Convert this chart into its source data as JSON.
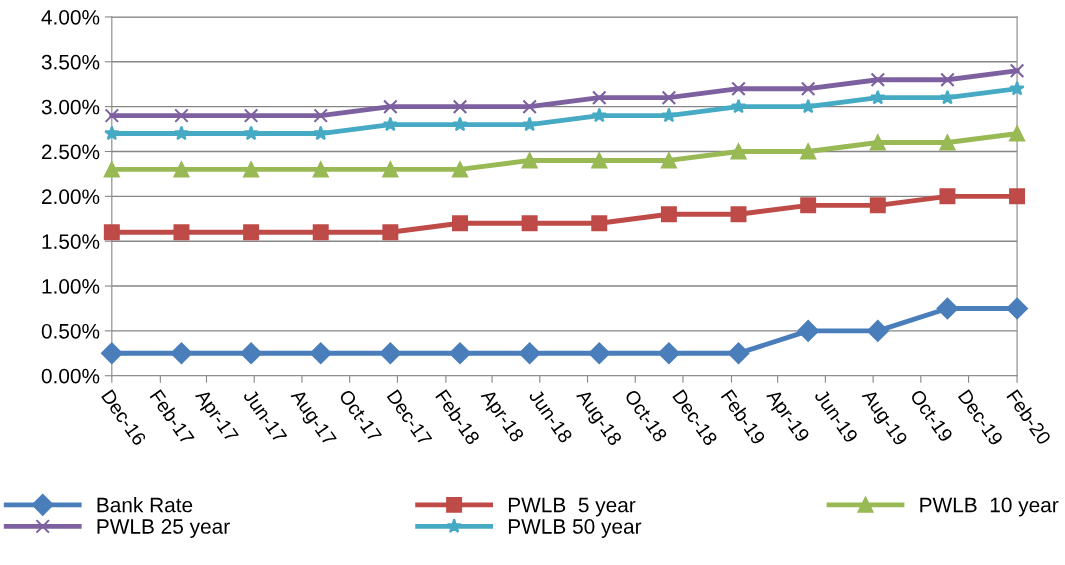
{
  "chart_data": {
    "type": "line",
    "x": [
      "2016-12-01",
      "2017-02-28",
      "2017-05-28",
      "2017-08-25",
      "2017-11-22",
      "2018-02-19",
      "2018-05-19",
      "2018-08-16",
      "2018-11-13",
      "2019-02-10",
      "2019-05-10",
      "2019-08-07",
      "2019-11-04",
      "2020-02-01"
    ],
    "series": [
      {
        "name": "Bank Rate",
        "color": "#4a7ebb",
        "marker": "diamond",
        "values": [
          0.25,
          0.25,
          0.25,
          0.25,
          0.25,
          0.25,
          0.25,
          0.25,
          0.25,
          0.25,
          0.5,
          0.5,
          0.75,
          0.75
        ]
      },
      {
        "name": "PWLB  5 year",
        "color": "#be4b48",
        "marker": "square",
        "values": [
          1.6,
          1.6,
          1.6,
          1.6,
          1.6,
          1.7,
          1.7,
          1.7,
          1.8,
          1.8,
          1.9,
          1.9,
          2.0,
          2.0
        ]
      },
      {
        "name": "PWLB  10 year",
        "color": "#98b954",
        "marker": "triangle",
        "values": [
          2.3,
          2.3,
          2.3,
          2.3,
          2.3,
          2.3,
          2.4,
          2.4,
          2.4,
          2.5,
          2.5,
          2.6,
          2.6,
          2.7
        ]
      },
      {
        "name": "PWLB 25 year",
        "color": "#7d60a0",
        "marker": "cross",
        "values": [
          2.9,
          2.9,
          2.9,
          2.9,
          3.0,
          3.0,
          3.0,
          3.1,
          3.1,
          3.2,
          3.2,
          3.3,
          3.3,
          3.4
        ]
      },
      {
        "name": "PWLB 50 year",
        "color": "#46aac5",
        "marker": "star",
        "values": [
          2.7,
          2.7,
          2.7,
          2.7,
          2.8,
          2.8,
          2.8,
          2.9,
          2.9,
          3.0,
          3.0,
          3.1,
          3.1,
          3.2
        ]
      }
    ],
    "xlim": [
      "2016-12-01",
      "2020-02-01"
    ],
    "xticks": [
      {
        "value": "2016-12-01",
        "label": "Dec-16"
      },
      {
        "value": "2017-02-01",
        "label": "Feb-17"
      },
      {
        "value": "2017-04-01",
        "label": "Apr-17"
      },
      {
        "value": "2017-06-01",
        "label": "Jun-17"
      },
      {
        "value": "2017-08-01",
        "label": "Aug-17"
      },
      {
        "value": "2017-10-01",
        "label": "Oct-17"
      },
      {
        "value": "2017-12-01",
        "label": "Dec-17"
      },
      {
        "value": "2018-02-01",
        "label": "Feb-18"
      },
      {
        "value": "2018-04-01",
        "label": "Apr-18"
      },
      {
        "value": "2018-06-01",
        "label": "Jun-18"
      },
      {
        "value": "2018-08-01",
        "label": "Aug-18"
      },
      {
        "value": "2018-10-01",
        "label": "Oct-18"
      },
      {
        "value": "2018-12-01",
        "label": "Dec-18"
      },
      {
        "value": "2019-02-01",
        "label": "Feb-19"
      },
      {
        "value": "2019-04-01",
        "label": "Apr-19"
      },
      {
        "value": "2019-06-01",
        "label": "Jun-19"
      },
      {
        "value": "2019-08-01",
        "label": "Aug-19"
      },
      {
        "value": "2019-10-01",
        "label": "Oct-19"
      },
      {
        "value": "2019-12-01",
        "label": "Dec-19"
      },
      {
        "value": "2020-02-01",
        "label": "Feb-20"
      }
    ],
    "ylim": [
      0,
      4
    ],
    "yticks": [
      {
        "value": 0,
        "label": "0.00%"
      },
      {
        "value": 0.5,
        "label": "0.50%"
      },
      {
        "value": 1,
        "label": "1.00%"
      },
      {
        "value": 1.5,
        "label": "1.50%"
      },
      {
        "value": 2,
        "label": "2.00%"
      },
      {
        "value": 2.5,
        "label": "2.50%"
      },
      {
        "value": 3,
        "label": "3.00%"
      },
      {
        "value": 3.5,
        "label": "3.50%"
      },
      {
        "value": 4,
        "label": "4.00%"
      }
    ],
    "grid": "y",
    "legend": "bottom",
    "line_style": "solid"
  }
}
